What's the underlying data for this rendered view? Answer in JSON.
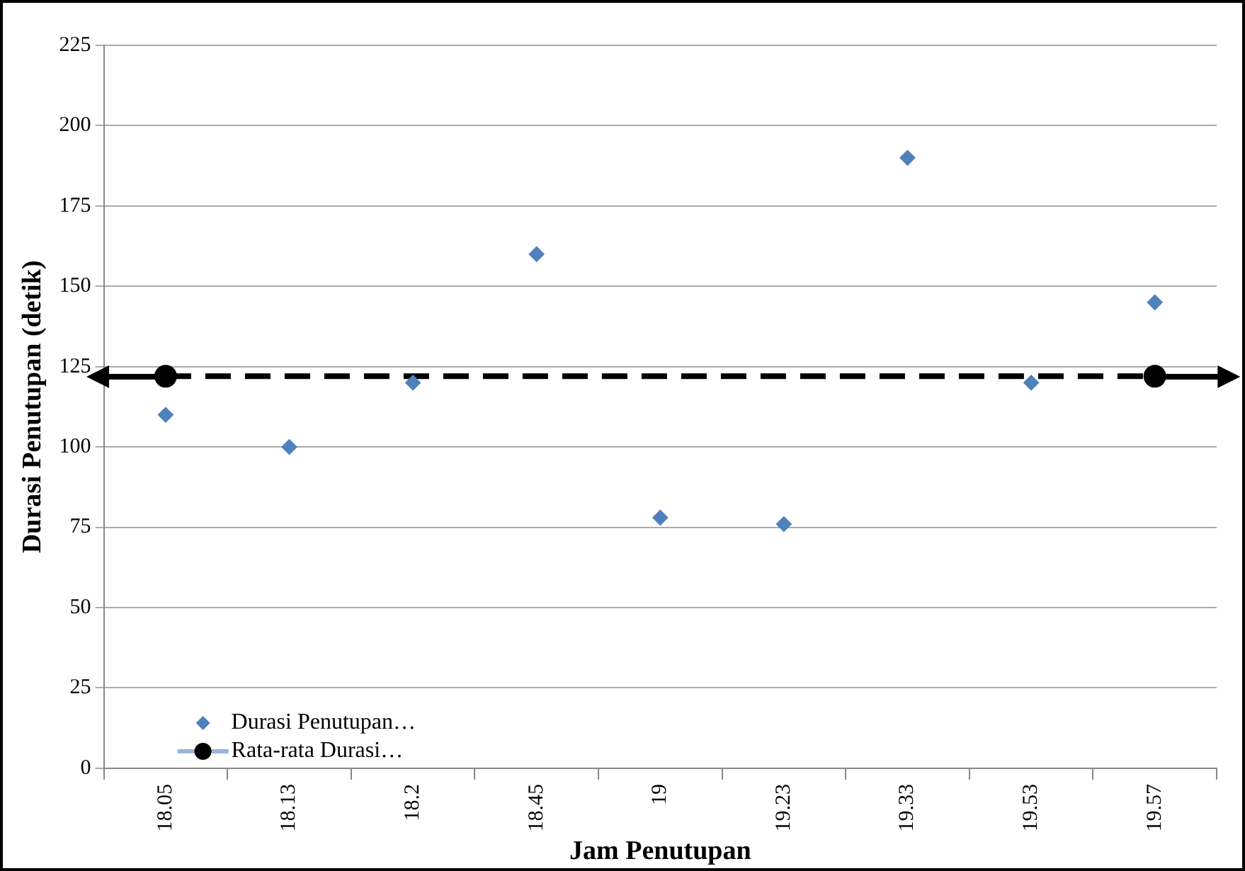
{
  "chart_data": {
    "type": "scatter",
    "xlabel": "Jam Penutupan",
    "ylabel": "Durasi Penutupan (detik)",
    "categories": [
      "18.05",
      "18.13",
      "18.2",
      "18.45",
      "19",
      "19.23",
      "19.33",
      "19.53",
      "19.57"
    ],
    "series": [
      {
        "name": "Durasi Penutupan…",
        "type": "scatter",
        "color": "#4f81bd",
        "marker": "diamond",
        "values": [
          110,
          100,
          120,
          160,
          78,
          76,
          190,
          120,
          145
        ]
      },
      {
        "name": "Rata-rata Durasi…",
        "type": "line",
        "color": "#000000",
        "marker": "circle",
        "line_style": "dashed",
        "values": [
          122,
          null,
          null,
          null,
          null,
          null,
          null,
          null,
          122
        ]
      }
    ],
    "ylim": [
      0,
      225
    ],
    "yticks": [
      0,
      25,
      50,
      75,
      100,
      125,
      150,
      175,
      200,
      225
    ],
    "grid": "y",
    "legend": "bottom left"
  }
}
